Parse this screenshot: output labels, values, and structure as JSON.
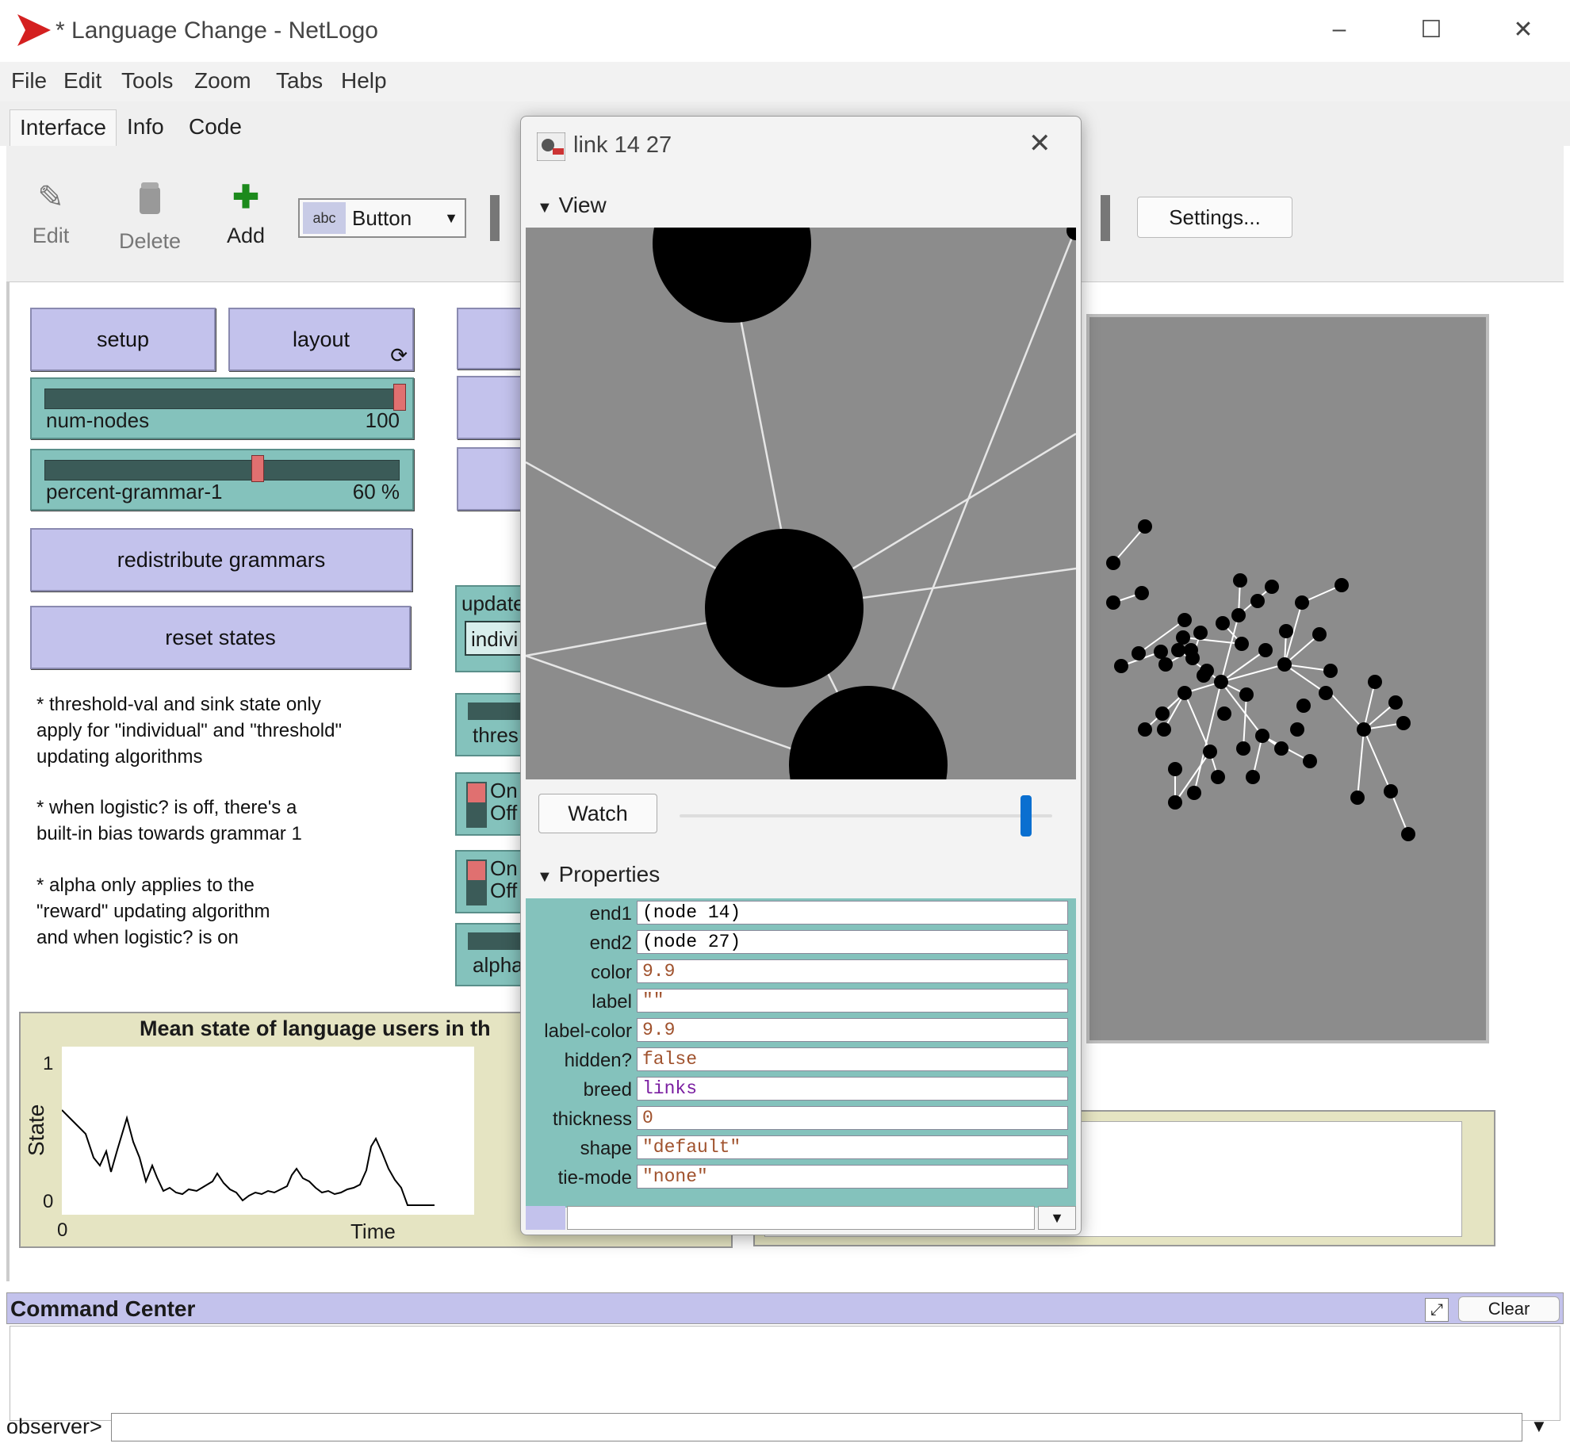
{
  "window": {
    "title": "* Language Change - NetLogo",
    "controls": {
      "minimize": "–",
      "maximize": "☐",
      "close": "✕"
    }
  },
  "menu": [
    "File",
    "Edit",
    "Tools",
    "Zoom",
    "Tabs",
    "Help"
  ],
  "tabs": [
    "Interface",
    "Info",
    "Code"
  ],
  "toolbar": {
    "edit": "Edit",
    "delete": "Delete",
    "add": "Add",
    "widget_type": "Button",
    "widget_type_icon": "abc",
    "settings": "Settings..."
  },
  "widgets": {
    "setup": "setup",
    "layout": "layout",
    "num_nodes": {
      "name": "num-nodes",
      "value": "100",
      "fraction": 1.0
    },
    "percent_grammar": {
      "name": "percent-grammar-1",
      "value": "60 %",
      "fraction": 0.6
    },
    "redistribute": "redistribute grammars",
    "reset": "reset states",
    "notes": [
      "* threshold-val and sink state only",
      "apply for \"individual\" and \"threshold\"",
      "updating algorithms",
      "* when logistic? is off, there's a",
      "built-in bias towards grammar 1",
      "* alpha only applies to the",
      "\"reward\" updating algorithm",
      "and when logistic? is on"
    ],
    "chooser_partial": {
      "label": "update",
      "value": "indivi"
    },
    "slider_partial_1": "thres",
    "switch_on": "On",
    "switch_off": "Off",
    "slider_partial_2": "alpha"
  },
  "plot": {
    "title": "Mean state of language users in th",
    "ylabel": "State",
    "xlabel": "Time",
    "y_ticks": [
      "1",
      "0"
    ],
    "x_ticks": [
      "0"
    ]
  },
  "command_center": {
    "title": "Command Center",
    "clear": "Clear",
    "prompt": "observer>"
  },
  "inspector": {
    "title": "link 14 27",
    "view_label": "View",
    "watch": "Watch",
    "properties_label": "Properties",
    "properties": [
      {
        "key": "end1",
        "value": "(node 14)"
      },
      {
        "key": "end2",
        "value": "(node 27)"
      },
      {
        "key": "color",
        "value": "9.9"
      },
      {
        "key": "label",
        "value": "\"\""
      },
      {
        "key": "label-color",
        "value": "9.9"
      },
      {
        "key": "hidden?",
        "value": "false"
      },
      {
        "key": "breed",
        "value": "links"
      },
      {
        "key": "thickness",
        "value": "0"
      },
      {
        "key": "shape",
        "value": "\"default\""
      },
      {
        "key": "tie-mode",
        "value": "\"none\""
      }
    ]
  },
  "colors": {
    "button": "#c3c2ec",
    "slider": "#84c2bc",
    "plot_bg": "#e5e4c2",
    "world_bg": "#8c8c8c",
    "accent_red": "#d42020",
    "string_color": "#a0522d",
    "keyword_color": "#7a1ea1"
  }
}
